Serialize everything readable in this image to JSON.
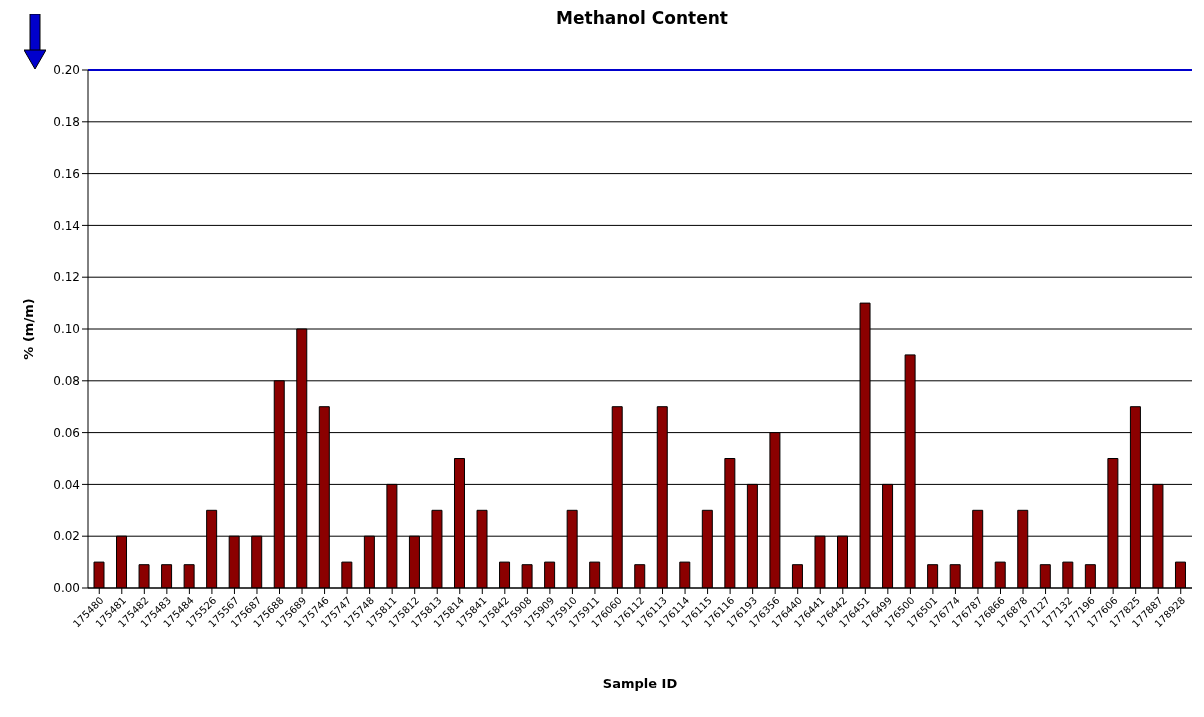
{
  "chart_data": {
    "type": "bar",
    "title": "Methanol Content",
    "xlabel": "Sample ID",
    "ylabel": "% (m/m)",
    "categories": [
      "175480",
      "175481",
      "175482",
      "175483",
      "175484",
      "175526",
      "175567",
      "175687",
      "175688",
      "175689",
      "175746",
      "175747",
      "175748",
      "175811",
      "175812",
      "175813",
      "175814",
      "175841",
      "175842",
      "175908",
      "175909",
      "175910",
      "175911",
      "176060",
      "176112",
      "176113",
      "176114",
      "176115",
      "176116",
      "176193",
      "176356",
      "176440",
      "176441",
      "176442",
      "176451",
      "176499",
      "176500",
      "176501",
      "176774",
      "176787",
      "176866",
      "176878",
      "177127",
      "177132",
      "177196",
      "177606",
      "177825",
      "177887",
      "178928"
    ],
    "values": [
      0.01,
      0.02,
      0.009,
      0.009,
      0.009,
      0.03,
      0.02,
      0.02,
      0.08,
      0.1,
      0.07,
      0.01,
      0.02,
      0.04,
      0.02,
      0.03,
      0.05,
      0.03,
      0.01,
      0.009,
      0.01,
      0.03,
      0.01,
      0.07,
      0.009,
      0.07,
      0.01,
      0.03,
      0.05,
      0.04,
      0.06,
      0.009,
      0.02,
      0.02,
      0.11,
      0.04,
      0.09,
      0.009,
      0.009,
      0.03,
      0.01,
      0.03,
      0.009,
      0.01,
      0.009,
      0.05,
      0.07,
      0.04,
      0.01
    ],
    "color": "#8b0000",
    "ylim": [
      0,
      0.2
    ],
    "yticks": [
      {
        "value": 0,
        "label": "0.00"
      },
      {
        "value": 0.02,
        "label": "0.02"
      },
      {
        "value": 0.04,
        "label": "0.04"
      },
      {
        "value": 0.06,
        "label": "0.06"
      },
      {
        "value": 0.08,
        "label": "0.08"
      },
      {
        "value": 0.1,
        "label": "0.10"
      },
      {
        "value": 0.12,
        "label": "0.12"
      },
      {
        "value": 0.14,
        "label": "0.14"
      },
      {
        "value": 0.16,
        "label": "0.16"
      },
      {
        "value": 0.18,
        "label": "0.18"
      },
      {
        "value": 0.2,
        "label": "0.20"
      }
    ],
    "ref_lines": [
      {
        "axis": "y",
        "value": 0.2,
        "color": "#0000cc"
      }
    ],
    "grid": "y"
  }
}
